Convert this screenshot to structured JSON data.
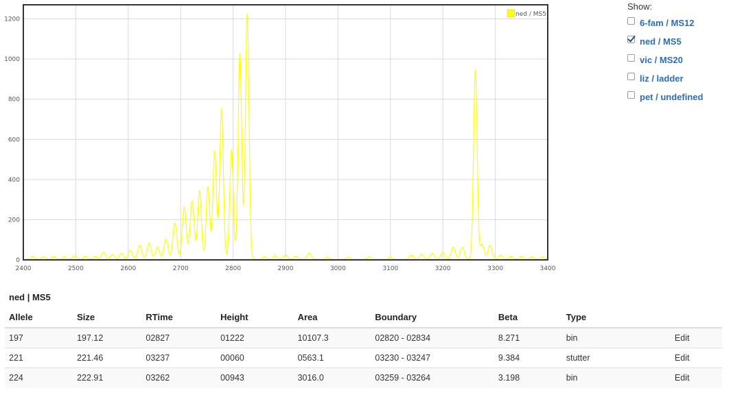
{
  "chart_data": {
    "type": "line",
    "xlim": [
      2400,
      3400
    ],
    "ylim": [
      0,
      1270
    ],
    "xticks": [
      2400,
      2500,
      2600,
      2700,
      2800,
      2900,
      3000,
      3100,
      3200,
      3300,
      3400
    ],
    "yticks": [
      0,
      200,
      400,
      600,
      800,
      1000,
      1200
    ],
    "grid": true,
    "legend_position": "top-right",
    "line_color": "#ffff00",
    "series": [
      {
        "name": "ned / MS5",
        "peaks": [
          {
            "x": 2418,
            "y": 15
          },
          {
            "x": 2438,
            "y": 12
          },
          {
            "x": 2458,
            "y": 14
          },
          {
            "x": 2478,
            "y": 12
          },
          {
            "x": 2498,
            "y": 18
          },
          {
            "x": 2518,
            "y": 15
          },
          {
            "x": 2537,
            "y": 14
          },
          {
            "x": 2553,
            "y": 35
          },
          {
            "x": 2570,
            "y": 25
          },
          {
            "x": 2587,
            "y": 30
          },
          {
            "x": 2604,
            "y": 45
          },
          {
            "x": 2622,
            "y": 70
          },
          {
            "x": 2640,
            "y": 80
          },
          {
            "x": 2656,
            "y": 60
          },
          {
            "x": 2672,
            "y": 100
          },
          {
            "x": 2689,
            "y": 180
          },
          {
            "x": 2707,
            "y": 260
          },
          {
            "x": 2722,
            "y": 290
          },
          {
            "x": 2736,
            "y": 340
          },
          {
            "x": 2752,
            "y": 360
          },
          {
            "x": 2765,
            "y": 540
          },
          {
            "x": 2778,
            "y": 750
          },
          {
            "x": 2797,
            "y": 545
          },
          {
            "x": 2813,
            "y": 1025
          },
          {
            "x": 2827,
            "y": 1222
          },
          {
            "x": 2860,
            "y": 12
          },
          {
            "x": 2880,
            "y": 18
          },
          {
            "x": 2900,
            "y": 22
          },
          {
            "x": 2920,
            "y": 15
          },
          {
            "x": 2945,
            "y": 30
          },
          {
            "x": 2980,
            "y": 10
          },
          {
            "x": 3020,
            "y": 10
          },
          {
            "x": 3060,
            "y": 12
          },
          {
            "x": 3100,
            "y": 10
          },
          {
            "x": 3140,
            "y": 20
          },
          {
            "x": 3160,
            "y": 25
          },
          {
            "x": 3180,
            "y": 30
          },
          {
            "x": 3200,
            "y": 35
          },
          {
            "x": 3220,
            "y": 60
          },
          {
            "x": 3237,
            "y": 60
          },
          {
            "x": 3262,
            "y": 943
          },
          {
            "x": 3275,
            "y": 75
          },
          {
            "x": 3290,
            "y": 70
          },
          {
            "x": 3310,
            "y": 20
          },
          {
            "x": 3330,
            "y": 15
          },
          {
            "x": 3350,
            "y": 15
          },
          {
            "x": 3370,
            "y": 12
          },
          {
            "x": 3390,
            "y": 12
          }
        ]
      }
    ]
  },
  "show_panel": {
    "label": "Show:",
    "items": [
      {
        "label": "6-fam / MS12",
        "checked": false
      },
      {
        "label": "ned / MS5",
        "checked": true
      },
      {
        "label": "vic / MS20",
        "checked": false
      },
      {
        "label": "liz / ladder",
        "checked": false
      },
      {
        "label": "pet / undefined",
        "checked": false
      }
    ]
  },
  "table": {
    "title": "ned | MS5",
    "columns": [
      "Allele",
      "Size",
      "RTime",
      "Height",
      "Area",
      "Boundary",
      "Beta",
      "Type",
      ""
    ],
    "rows": [
      [
        "197",
        "197.12",
        "02827",
        "01222",
        "10107.3",
        "02820 - 02834",
        "8.271",
        "bin",
        "Edit"
      ],
      [
        "221",
        "221.46",
        "03237",
        "00060",
        "0563.1",
        "03230 - 03247",
        "9.384",
        "stutter",
        "Edit"
      ],
      [
        "224",
        "222.91",
        "03262",
        "00943",
        "3016.0",
        "03259 - 03264",
        "3.198",
        "bin",
        "Edit"
      ]
    ]
  }
}
